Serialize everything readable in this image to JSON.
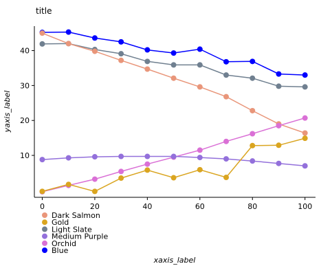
{
  "chart_data": {
    "type": "line",
    "title": "title",
    "xlabel": "xaxis_label",
    "ylabel": "yaxis_label",
    "xlim": [
      -3,
      104
    ],
    "ylim": [
      -2,
      47
    ],
    "xticks": [
      0,
      20,
      40,
      60,
      80,
      100
    ],
    "yticks": [
      10,
      20,
      30,
      40
    ],
    "grid": false,
    "legend_position": "right",
    "series": [
      {
        "name": "Blue",
        "color": "#0000ff",
        "x": [
          0,
          10,
          20,
          30,
          40,
          50,
          60,
          70,
          80,
          90,
          100
        ],
        "y": [
          45.2,
          45.3,
          43.6,
          42.5,
          40.2,
          39.3,
          40.4,
          36.8,
          36.9,
          33.3,
          33.0
        ]
      },
      {
        "name": "Light Slate",
        "color": "#708090",
        "x": [
          0,
          10,
          20,
          30,
          40,
          50,
          60,
          70,
          80,
          90,
          100
        ],
        "y": [
          41.9,
          42.0,
          40.3,
          39.1,
          36.9,
          35.9,
          35.9,
          33.0,
          32.1,
          29.8,
          29.6
        ]
      },
      {
        "name": "Dark Salmon",
        "color": "#e9967a",
        "x": [
          0,
          10,
          20,
          30,
          40,
          50,
          60,
          70,
          80,
          90,
          100
        ],
        "y": [
          45.0,
          42.0,
          39.8,
          37.2,
          34.7,
          32.1,
          29.6,
          26.8,
          22.8,
          19.0,
          16.4
        ]
      },
      {
        "name": "Orchid",
        "color": "#da70d6",
        "x": [
          0,
          10,
          20,
          30,
          40,
          50,
          60,
          70,
          80,
          90,
          100
        ],
        "y": [
          -0.4,
          1.4,
          3.2,
          5.4,
          7.5,
          9.5,
          11.5,
          14.0,
          16.2,
          18.5,
          20.7
        ]
      },
      {
        "name": "Medium Purple",
        "color": "#9370db",
        "x": [
          0,
          10,
          20,
          30,
          40,
          50,
          60,
          70,
          80,
          90,
          100
        ],
        "y": [
          8.8,
          9.3,
          9.6,
          9.7,
          9.7,
          9.7,
          9.4,
          9.0,
          8.4,
          7.7,
          7.0
        ]
      },
      {
        "name": "Gold",
        "color": "#daa520",
        "x": [
          0,
          10,
          20,
          30,
          40,
          50,
          60,
          70,
          80,
          90,
          100
        ],
        "y": [
          -0.3,
          1.7,
          -0.3,
          3.5,
          5.8,
          3.6,
          5.9,
          3.7,
          12.8,
          12.9,
          14.9
        ]
      }
    ]
  }
}
